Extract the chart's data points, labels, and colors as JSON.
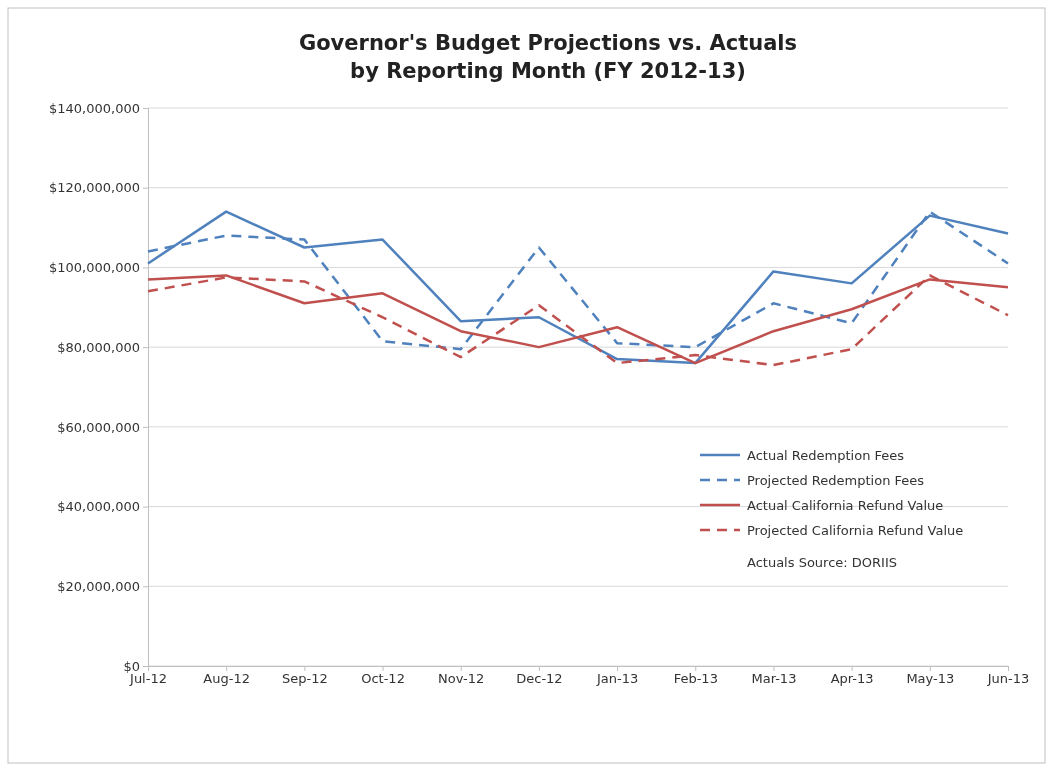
{
  "chart_data": {
    "type": "line",
    "title": "Governor's Budget Projections  vs. Actuals\nby Reporting Month (FY 2012-13)",
    "categories": [
      "Jul-12",
      "Aug-12",
      "Sep-12",
      "Oct-12",
      "Nov-12",
      "Dec-12",
      "Jan-13",
      "Feb-13",
      "Mar-13",
      "Apr-13",
      "May-13",
      "Jun-13"
    ],
    "series": [
      {
        "name": "Actual Redemption Fees",
        "color": "#4f81bd",
        "line_style": "solid",
        "values": [
          101000000,
          114000000,
          105000000,
          107000000,
          86500000,
          87500000,
          77000000,
          76000000,
          99000000,
          96000000,
          113000000,
          108500000
        ]
      },
      {
        "name": "Projected Redemption Fees",
        "color": "#4f81bd",
        "line_style": "dashed",
        "values": [
          104000000,
          108000000,
          107000000,
          81500000,
          79500000,
          105000000,
          81000000,
          80000000,
          91000000,
          86000000,
          114000000,
          101000000
        ]
      },
      {
        "name": "Actual California Refund Value",
        "color": "#c0504d",
        "line_style": "solid",
        "values": [
          97000000,
          98000000,
          91000000,
          93500000,
          84000000,
          80000000,
          85000000,
          76000000,
          84000000,
          89500000,
          97000000,
          95000000
        ]
      },
      {
        "name": "Projected California Refund Value",
        "color": "#c0504d",
        "line_style": "dashed",
        "values": [
          94000000,
          97500000,
          96500000,
          87500000,
          77500000,
          90500000,
          76000000,
          78000000,
          75500000,
          79500000,
          98000000,
          88000000
        ]
      }
    ],
    "ylim": [
      0,
      140000000
    ],
    "yticks": [
      {
        "value": 0,
        "label": "$0"
      },
      {
        "value": 20000000,
        "label": "$20,000,000"
      },
      {
        "value": 40000000,
        "label": "$40,000,000"
      },
      {
        "value": 60000000,
        "label": "$60,000,000"
      },
      {
        "value": 80000000,
        "label": "$80,000,000"
      },
      {
        "value": 100000000,
        "label": "$100,000,000"
      },
      {
        "value": 120000000,
        "label": "$120,000,000"
      },
      {
        "value": 140000000,
        "label": "$140,000,000"
      }
    ],
    "grid": "y",
    "legend": "bottom right",
    "marker": "none",
    "annotations": [
      "Actuals Source: DORIIS"
    ]
  }
}
